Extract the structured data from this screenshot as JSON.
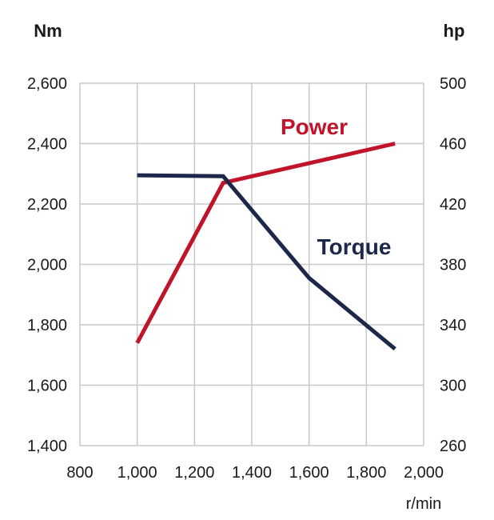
{
  "chart_data": {
    "type": "line",
    "left_axis_label": "Nm",
    "right_axis_label": "hp",
    "xlabel": "r/min",
    "xlim": [
      800,
      2000
    ],
    "x_ticks": [
      800,
      1000,
      1200,
      1400,
      1600,
      1800,
      2000
    ],
    "x_tick_labels": [
      "800",
      "1,000",
      "1,200",
      "1,400",
      "1,600",
      "1,800",
      "2,000"
    ],
    "ylim_left": [
      1400,
      2600
    ],
    "y_ticks_left": [
      1400,
      1600,
      1800,
      2000,
      2200,
      2400,
      2600
    ],
    "y_tick_labels_left": [
      "1,400",
      "1,600",
      "1,800",
      "2,000",
      "2,200",
      "2,400",
      "2,600"
    ],
    "ylim_right": [
      260,
      500
    ],
    "y_ticks_right": [
      260,
      300,
      340,
      380,
      420,
      460,
      500
    ],
    "y_tick_labels_right": [
      "260",
      "300",
      "340",
      "380",
      "420",
      "460",
      "500"
    ],
    "grid": true,
    "series": [
      {
        "name": "Power",
        "axis": "right",
        "color": "#c0142b",
        "x": [
          1000,
          1300,
          1900
        ],
        "y": [
          328,
          434,
          460
        ]
      },
      {
        "name": "Torque",
        "axis": "left",
        "color": "#1c2749",
        "x": [
          1000,
          1300,
          1600,
          1900
        ],
        "y": [
          2295,
          2292,
          1955,
          1720
        ]
      }
    ]
  }
}
